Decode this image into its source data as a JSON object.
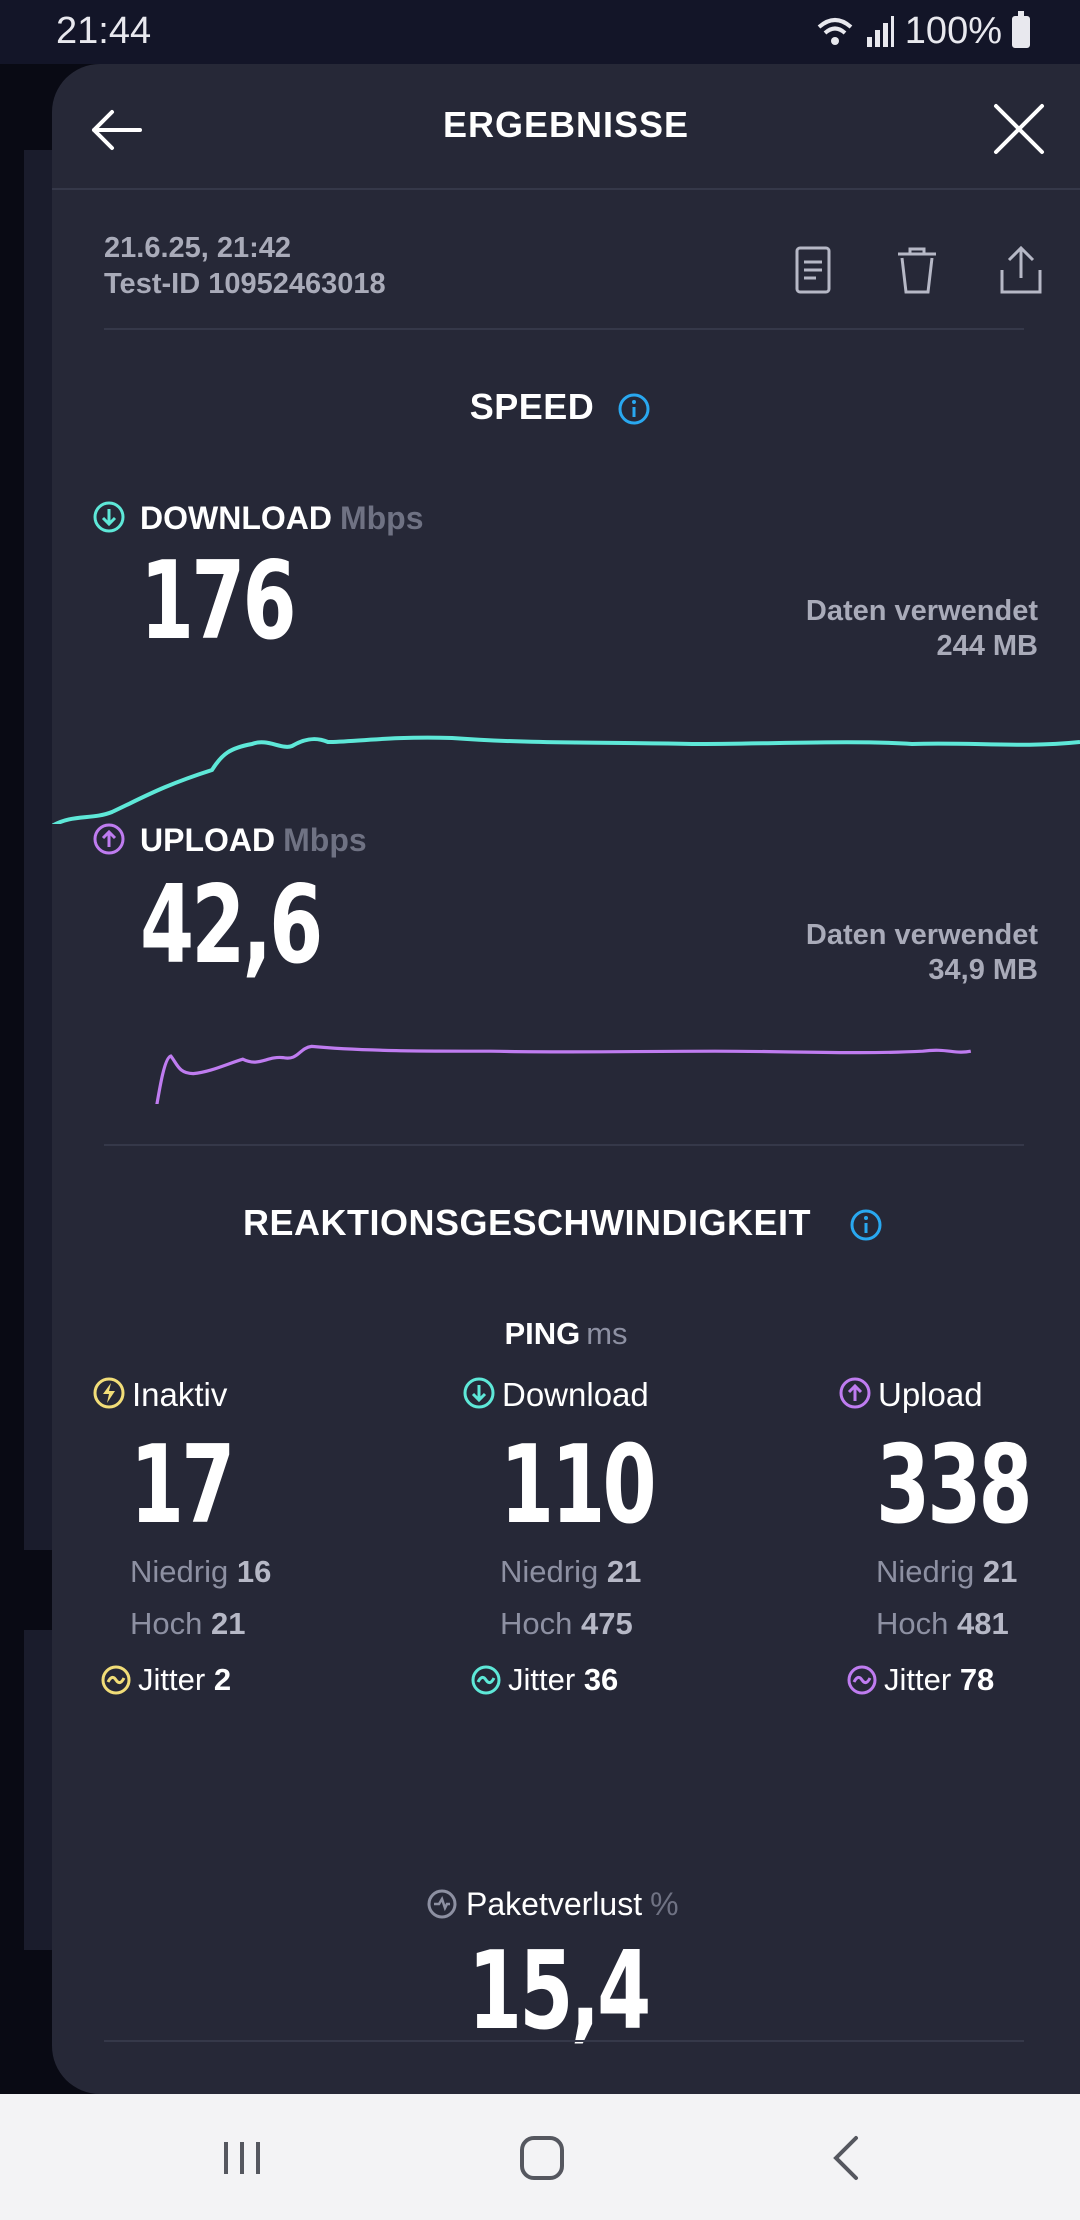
{
  "status_bar": {
    "time": "21:44",
    "battery": "100%",
    "icons": [
      "wifi-icon",
      "signal-icon",
      "battery-icon"
    ]
  },
  "header": {
    "title": "ERGEBNISSE"
  },
  "meta": {
    "datetime": "21.6.25, 21:42",
    "test_id": "Test-ID 10952463018"
  },
  "speed": {
    "title": "SPEED",
    "download": {
      "label": "DOWNLOAD",
      "unit": "Mbps",
      "value": "176",
      "data_used_label": "Daten verwendet",
      "data_used_value": "244 MB"
    },
    "upload": {
      "label": "UPLOAD",
      "unit": "Mbps",
      "value": "42,6",
      "data_used_label": "Daten verwendet",
      "data_used_value": "34,9 MB"
    }
  },
  "responsiveness": {
    "title": "REAKTIONSGESCHWINDIGKEIT",
    "ping_label": "PING",
    "ping_unit": "ms",
    "columns": [
      {
        "label": "Inaktiv",
        "value": "17",
        "low_label": "Niedrig",
        "low": "16",
        "high_label": "Hoch",
        "high": "21",
        "jitter_label": "Jitter",
        "jitter": "2"
      },
      {
        "label": "Download",
        "value": "110",
        "low_label": "Niedrig",
        "low": "21",
        "high_label": "Hoch",
        "high": "475",
        "jitter_label": "Jitter",
        "jitter": "36"
      },
      {
        "label": "Upload",
        "value": "338",
        "low_label": "Niedrig",
        "low": "21",
        "high_label": "Hoch",
        "high": "481",
        "jitter_label": "Jitter",
        "jitter": "78"
      }
    ]
  },
  "packet_loss": {
    "label": "Paketverlust",
    "unit": "%",
    "value": "15,4"
  },
  "colors": {
    "download": "#5ee8d8",
    "upload": "#bf7cf0",
    "idle": "#f1dd78",
    "info": "#29a8f0",
    "sheet": "#262837"
  }
}
